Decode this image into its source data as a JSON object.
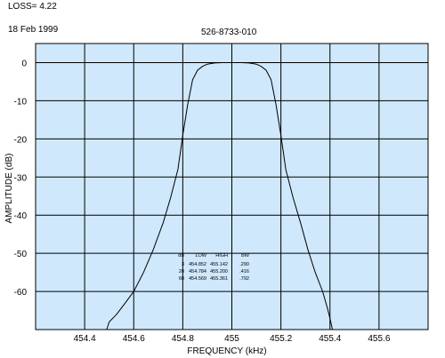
{
  "header": {
    "loss_label": "LOSS=",
    "loss_value": "4.22",
    "date": "18 Feb 1999",
    "part_number": "526-8733-010"
  },
  "colors": {
    "plot_background": "#cfe8fb",
    "grid": "#000000",
    "trace": "#000000"
  },
  "chart_data": {
    "type": "line",
    "title": "526-8733-010",
    "xlabel": "FREQUENCY (kHz)",
    "ylabel": "AMPLITUDE (dB)",
    "xlim": [
      454.2,
      455.8
    ],
    "ylim": [
      -70,
      5
    ],
    "xticks": [
      "454.4",
      "454.6",
      "454.8",
      "455",
      "455.2",
      "455.4",
      "455.6"
    ],
    "xtick_values": [
      454.4,
      454.6,
      454.8,
      455.0,
      455.2,
      455.4,
      455.6
    ],
    "yticks": [
      "0",
      "-10",
      "-20",
      "-30",
      "-40",
      "-50",
      "-60"
    ],
    "ytick_values": [
      0,
      -10,
      -20,
      -30,
      -40,
      -50,
      -60
    ],
    "grid": true,
    "series": [
      {
        "x": [
          454.49,
          454.5,
          454.53,
          454.56,
          454.6,
          454.64,
          454.68,
          454.72,
          454.75,
          454.78,
          454.8,
          454.82,
          454.84,
          454.86,
          454.88,
          454.9,
          454.93,
          454.96,
          455.0,
          455.04,
          455.07,
          455.1,
          455.12,
          455.14,
          455.16,
          455.18,
          455.2,
          455.22,
          455.25,
          455.28,
          455.31,
          455.34,
          455.37,
          455.39,
          455.4,
          455.41
        ],
        "y": [
          -70,
          -68,
          -66,
          -63.5,
          -60,
          -55,
          -49,
          -42,
          -35.5,
          -28,
          -19,
          -11,
          -4.5,
          -2,
          -1,
          -0.4,
          -0.1,
          0,
          0,
          0,
          -0.1,
          -0.4,
          -1,
          -2,
          -4.5,
          -11,
          -19,
          -28,
          -35.5,
          -42,
          -49,
          -55,
          -60,
          -64.5,
          -67,
          -70
        ]
      }
    ],
    "table": {
      "headers": [
        "dB",
        "LOW",
        "HIGH",
        "BW"
      ],
      "rows": [
        [
          "3",
          "454.852",
          "455.142",
          ".290"
        ],
        [
          "20",
          "454.784",
          "455.200",
          ".416"
        ],
        [
          "60",
          "454.569",
          "455.361",
          ".792"
        ]
      ]
    }
  }
}
